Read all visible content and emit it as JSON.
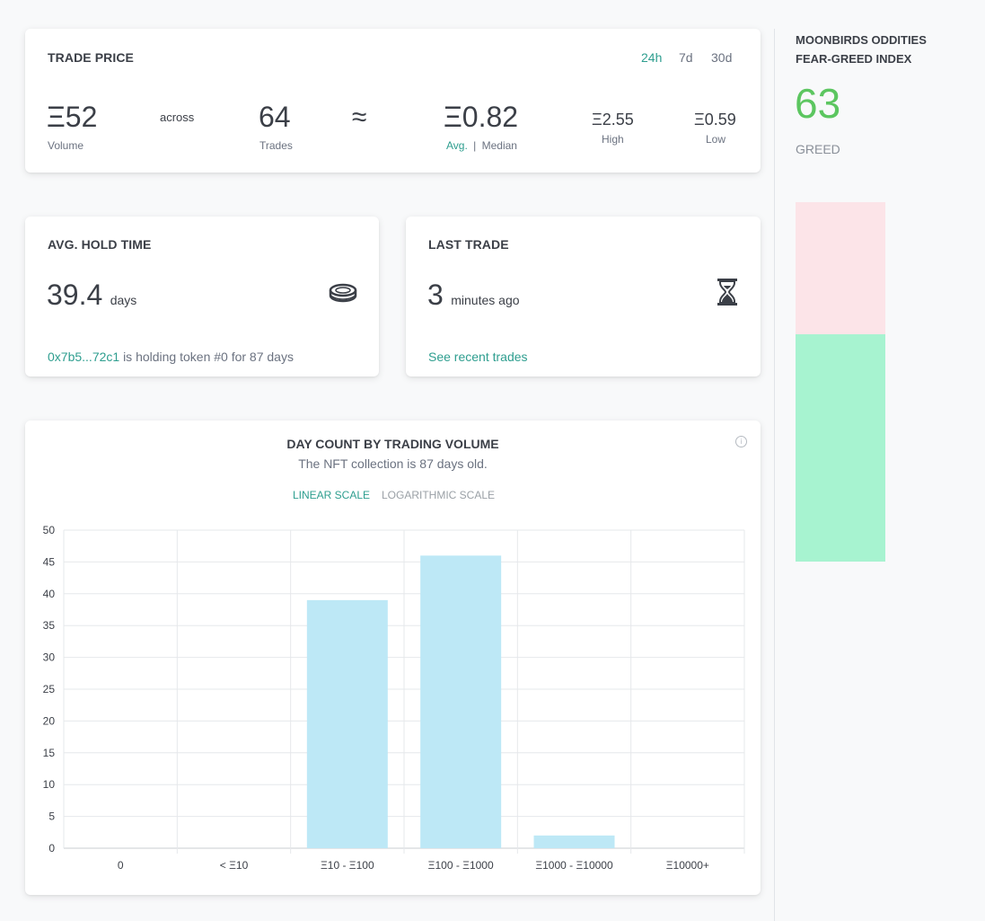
{
  "trade_price": {
    "title": "TRADE PRICE",
    "periods": [
      "24h",
      "7d",
      "30d"
    ],
    "active_period": "24h",
    "volume_value": "Ξ52",
    "volume_label": "Volume",
    "across": "across",
    "trades_value": "64",
    "trades_label": "Trades",
    "approx": "≈",
    "avg_value": "Ξ0.82",
    "avg_label": "Avg.",
    "separator": "|",
    "median_label": "Median",
    "high_value": "Ξ2.55",
    "high_label": "High",
    "low_value": "Ξ0.59",
    "low_label": "Low"
  },
  "hold_time": {
    "title": "AVG. HOLD TIME",
    "value": "39.4",
    "unit": "days",
    "holder_address": "0x7b5...72c1",
    "holder_text": "is holding token #0 for 87 days"
  },
  "last_trade": {
    "title": "LAST TRADE",
    "value": "3",
    "unit": "minutes ago",
    "link": "See recent trades"
  },
  "chart": {
    "title": "DAY COUNT BY TRADING VOLUME",
    "subtitle": "The NFT collection is 87 days old.",
    "scale_linear": "LINEAR SCALE",
    "scale_log": "LOGARITHMIC SCALE"
  },
  "chart_data": {
    "type": "bar",
    "title": "DAY COUNT BY TRADING VOLUME",
    "categories": [
      "0",
      "< Ξ10",
      "Ξ10 - Ξ100",
      "Ξ100 - Ξ1000",
      "Ξ1000 - Ξ10000",
      "Ξ10000+"
    ],
    "values": [
      0,
      0,
      39,
      46,
      2,
      0
    ],
    "yticks": [
      "0",
      "5",
      "10",
      "15",
      "20",
      "25",
      "30",
      "35",
      "40",
      "45",
      "50"
    ],
    "ylim": [
      0,
      50
    ],
    "xlabel": "",
    "ylabel": "",
    "bar_color": "#bde8f6",
    "grid": true
  },
  "sidebar": {
    "title_line1": "MOONBIRDS ODDITIES",
    "title_line2": "FEAR-GREED INDEX",
    "index_value": "63",
    "index_label": "GREED",
    "index_fraction": 0.63,
    "fear_color": "#fce4e8",
    "greed_color": "#a7f3d0",
    "value_color": "#5cc660"
  },
  "colors": {
    "accent": "#2e9e8f",
    "text": "#3b3f47",
    "muted": "#6b7280"
  }
}
